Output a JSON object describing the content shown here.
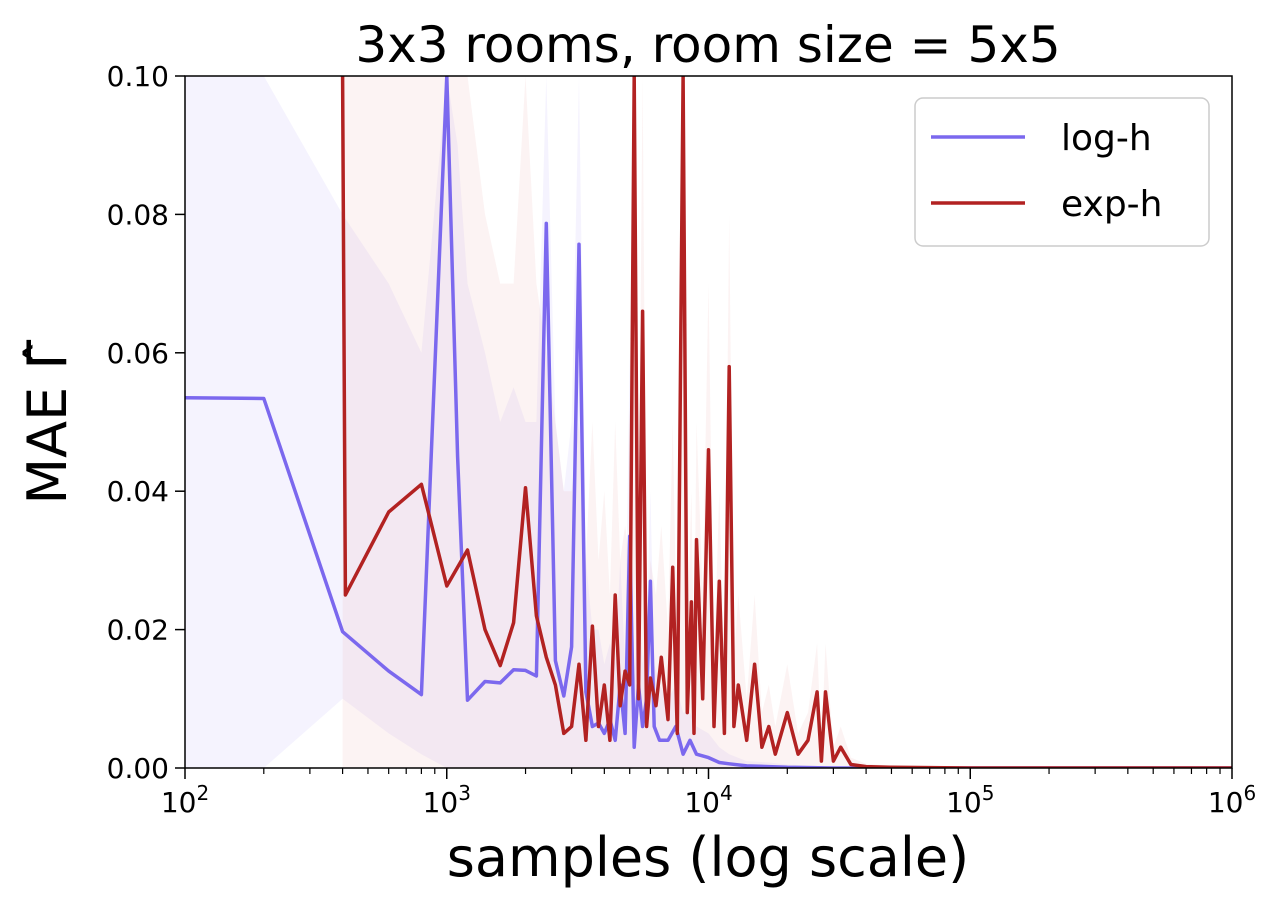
{
  "chart_data": {
    "type": "line",
    "title": "3x3 rooms, room size = 5x5",
    "xlabel": "samples (log scale)",
    "ylabel": "MAE Γ̂",
    "xscale": "log",
    "xlim": [
      100,
      1000000
    ],
    "ylim": [
      0,
      0.1
    ],
    "xticks": [
      {
        "value": 100,
        "base": "10",
        "exp": "2"
      },
      {
        "value": 1000,
        "base": "10",
        "exp": "3"
      },
      {
        "value": 10000,
        "base": "10",
        "exp": "4"
      },
      {
        "value": 100000,
        "base": "10",
        "exp": "5"
      },
      {
        "value": 1000000,
        "base": "10",
        "exp": "6"
      }
    ],
    "yticks": [
      "0.00",
      "0.02",
      "0.04",
      "0.06",
      "0.08",
      "0.10"
    ],
    "grid": false,
    "legend_position": "top-right",
    "series": [
      {
        "name": "log-h",
        "color": "#7b68ee",
        "band_color": "#7b68ee",
        "x": [
          100,
          200,
          400,
          600,
          800,
          1000,
          1100,
          1200,
          1400,
          1600,
          1800,
          2000,
          2200,
          2400,
          2600,
          2800,
          3000,
          3200,
          3400,
          3600,
          3800,
          4000,
          4200,
          4400,
          4600,
          4800,
          5000,
          5200,
          5400,
          5600,
          5800,
          6000,
          6200,
          6500,
          7000,
          7500,
          8000,
          8500,
          9000,
          10000,
          11000,
          12000,
          14000,
          17000,
          20000,
          30000,
          50000,
          100000,
          1000000
        ],
        "y": [
          0.0535,
          0.0534,
          0.0197,
          0.014,
          0.0106,
          0.1,
          0.045,
          0.0098,
          0.0125,
          0.0123,
          0.0142,
          0.0141,
          0.0133,
          0.0787,
          0.0155,
          0.0104,
          0.0175,
          0.0757,
          0.011,
          0.006,
          0.0065,
          0.005,
          0.007,
          0.004,
          0.012,
          0.005,
          0.0335,
          0.003,
          0.012,
          0.006,
          0.01,
          0.027,
          0.006,
          0.004,
          0.004,
          0.006,
          0.002,
          0.004,
          0.002,
          0.0015,
          0.0008,
          0.0006,
          0.0003,
          0.0002,
          0.0001,
          0.0,
          0.0,
          0.0,
          0.0
        ],
        "upper": [
          0.1,
          0.1,
          0.08,
          0.07,
          0.06,
          0.1,
          0.09,
          0.07,
          0.06,
          0.05,
          0.055,
          0.05,
          0.05,
          0.1,
          0.05,
          0.04,
          0.05,
          0.1,
          0.03,
          0.02,
          0.02,
          0.015,
          0.018,
          0.015,
          0.03,
          0.015,
          0.06,
          0.012,
          0.025,
          0.015,
          0.02,
          0.04,
          0.015,
          0.012,
          0.01,
          0.012,
          0.008,
          0.008,
          0.006,
          0.005,
          0.003,
          0.002,
          0.001,
          0.0008,
          0.0005,
          0.0002,
          0.0,
          0.0,
          0.0
        ],
        "lower": [
          0.0,
          0.0,
          0.01,
          0.005,
          0.002,
          0.0,
          0.0,
          0.0,
          0.0,
          0.0,
          0.0,
          0.0,
          0.0,
          0.0,
          0.0,
          0.0,
          0.0,
          0.0,
          0.0,
          0.0,
          0.0,
          0.0,
          0.0,
          0.0,
          0.0,
          0.0,
          0.0,
          0.0,
          0.0,
          0.0,
          0.0,
          0.0,
          0.0,
          0.0,
          0.0,
          0.0,
          0.0,
          0.0,
          0.0,
          0.0,
          0.0,
          0.0,
          0.0,
          0.0,
          0.0,
          0.0,
          0.0,
          0.0,
          0.0
        ]
      },
      {
        "name": "exp-h",
        "color": "#b22222",
        "band_color": "#e8a0a0",
        "x": [
          400,
          410,
          600,
          800,
          1000,
          1200,
          1400,
          1600,
          1800,
          2000,
          2200,
          2400,
          2600,
          2800,
          3000,
          3200,
          3400,
          3600,
          3800,
          4000,
          4200,
          4400,
          4600,
          4800,
          5000,
          5200,
          5400,
          5600,
          5800,
          6000,
          6300,
          6600,
          7000,
          7300,
          7600,
          8000,
          8300,
          8600,
          8800,
          9000,
          9500,
          10000,
          10500,
          11000,
          11500,
          12000,
          12500,
          13000,
          14000,
          15000,
          16000,
          17000,
          18000,
          20000,
          22000,
          24000,
          26000,
          27000,
          28000,
          30000,
          32000,
          35000,
          40000,
          50000,
          100000,
          1000000
        ],
        "y": [
          0.1,
          0.025,
          0.037,
          0.041,
          0.0263,
          0.0315,
          0.02,
          0.0148,
          0.021,
          0.0405,
          0.022,
          0.016,
          0.012,
          0.005,
          0.006,
          0.015,
          0.004,
          0.0205,
          0.006,
          0.012,
          0.004,
          0.025,
          0.009,
          0.014,
          0.012,
          0.1,
          0.01,
          0.066,
          0.006,
          0.013,
          0.009,
          0.016,
          0.007,
          0.029,
          0.005,
          0.1,
          0.008,
          0.024,
          0.005,
          0.033,
          0.01,
          0.046,
          0.006,
          0.027,
          0.005,
          0.058,
          0.006,
          0.012,
          0.004,
          0.015,
          0.003,
          0.006,
          0.002,
          0.008,
          0.002,
          0.004,
          0.011,
          0.001,
          0.011,
          0.001,
          0.003,
          0.0005,
          0.0002,
          0.0001,
          0.0,
          0.0
        ],
        "upper": [
          0.1,
          0.1,
          0.1,
          0.1,
          0.1,
          0.1,
          0.08,
          0.07,
          0.07,
          0.1,
          0.07,
          0.06,
          0.05,
          0.04,
          0.04,
          0.05,
          0.03,
          0.05,
          0.03,
          0.04,
          0.025,
          0.05,
          0.03,
          0.035,
          0.03,
          0.1,
          0.03,
          0.1,
          0.02,
          0.03,
          0.025,
          0.035,
          0.02,
          0.05,
          0.015,
          0.1,
          0.02,
          0.04,
          0.015,
          0.05,
          0.025,
          0.07,
          0.015,
          0.04,
          0.012,
          0.08,
          0.015,
          0.025,
          0.01,
          0.025,
          0.008,
          0.012,
          0.006,
          0.015,
          0.005,
          0.008,
          0.018,
          0.003,
          0.018,
          0.003,
          0.006,
          0.0015,
          0.0006,
          0.0003,
          0.0,
          0.0
        ],
        "lower": [
          0.0,
          0.0,
          0.0,
          0.0,
          0.0,
          0.0,
          0.0,
          0.0,
          0.0,
          0.0,
          0.0,
          0.0,
          0.0,
          0.0,
          0.0,
          0.0,
          0.0,
          0.0,
          0.0,
          0.0,
          0.0,
          0.0,
          0.0,
          0.0,
          0.0,
          0.0,
          0.0,
          0.0,
          0.0,
          0.0,
          0.0,
          0.0,
          0.0,
          0.0,
          0.0,
          0.0,
          0.0,
          0.0,
          0.0,
          0.0,
          0.0,
          0.0,
          0.0,
          0.0,
          0.0,
          0.0,
          0.0,
          0.0,
          0.0,
          0.0,
          0.0,
          0.0,
          0.0,
          0.0,
          0.0,
          0.0,
          0.0,
          0.0,
          0.0,
          0.0,
          0.0,
          0.0,
          0.0,
          0.0,
          0.0,
          0.0
        ]
      }
    ]
  }
}
